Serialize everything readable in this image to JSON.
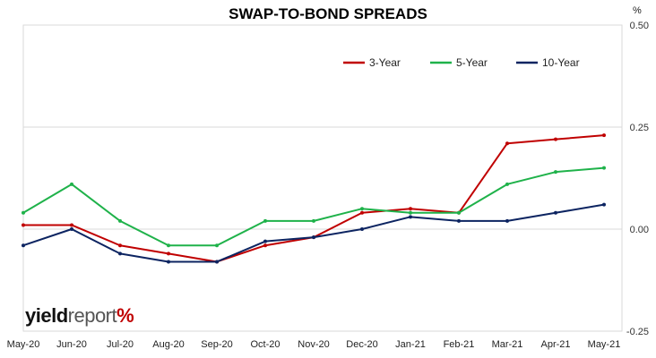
{
  "brand": {
    "yield": "yield",
    "report": "report",
    "pct": "%"
  },
  "chart_data": {
    "type": "line",
    "title": "SWAP-TO-BOND SPREADS",
    "unit": "%",
    "xlabel": "",
    "ylabel": "",
    "ylim": [
      -0.25,
      0.5
    ],
    "yticks": [
      -0.25,
      0.0,
      0.25,
      0.5
    ],
    "ytick_labels": [
      "-0.25",
      "0.00",
      "0.25",
      "0.50"
    ],
    "y_axis_side": "right",
    "grid": "horizontal",
    "legend_placement": "top-right",
    "x_tick_labels": [
      "May-20",
      "Jun-20",
      "Jul-20",
      "Aug-20",
      "Sep-20",
      "Oct-20",
      "Nov-20",
      "Dec-20",
      "Jan-21",
      "Feb-21",
      "Mar-21",
      "Apr-21",
      "May-21"
    ],
    "series_colors": {
      "3-Year": "#c00000",
      "5-Year": "#1fb24a",
      "10-Year": "#0c2461"
    },
    "x": [
      "May-20",
      "Jun-20",
      "Jul-20",
      "Aug-20",
      "Sep-20",
      "Oct-20",
      "Nov-20",
      "Dec-20",
      "Jan-21",
      "Feb-21",
      "Mar-21",
      "Apr-21",
      "May-21"
    ],
    "series": [
      {
        "name": "3-Year",
        "color": "#c00000",
        "values": [
          0.01,
          0.01,
          -0.04,
          -0.06,
          -0.08,
          -0.04,
          -0.02,
          0.04,
          0.05,
          0.04,
          0.21,
          0.22,
          0.23
        ]
      },
      {
        "name": "5-Year",
        "color": "#1fb24a",
        "values": [
          0.04,
          0.11,
          0.02,
          -0.04,
          -0.04,
          0.02,
          0.02,
          0.05,
          0.04,
          0.04,
          0.11,
          0.14,
          0.15
        ]
      },
      {
        "name": "10-Year",
        "color": "#0c2461",
        "values": [
          -0.04,
          0.0,
          -0.06,
          -0.08,
          -0.08,
          -0.03,
          -0.02,
          0.0,
          0.03,
          0.02,
          0.02,
          0.04,
          0.06
        ]
      }
    ]
  }
}
